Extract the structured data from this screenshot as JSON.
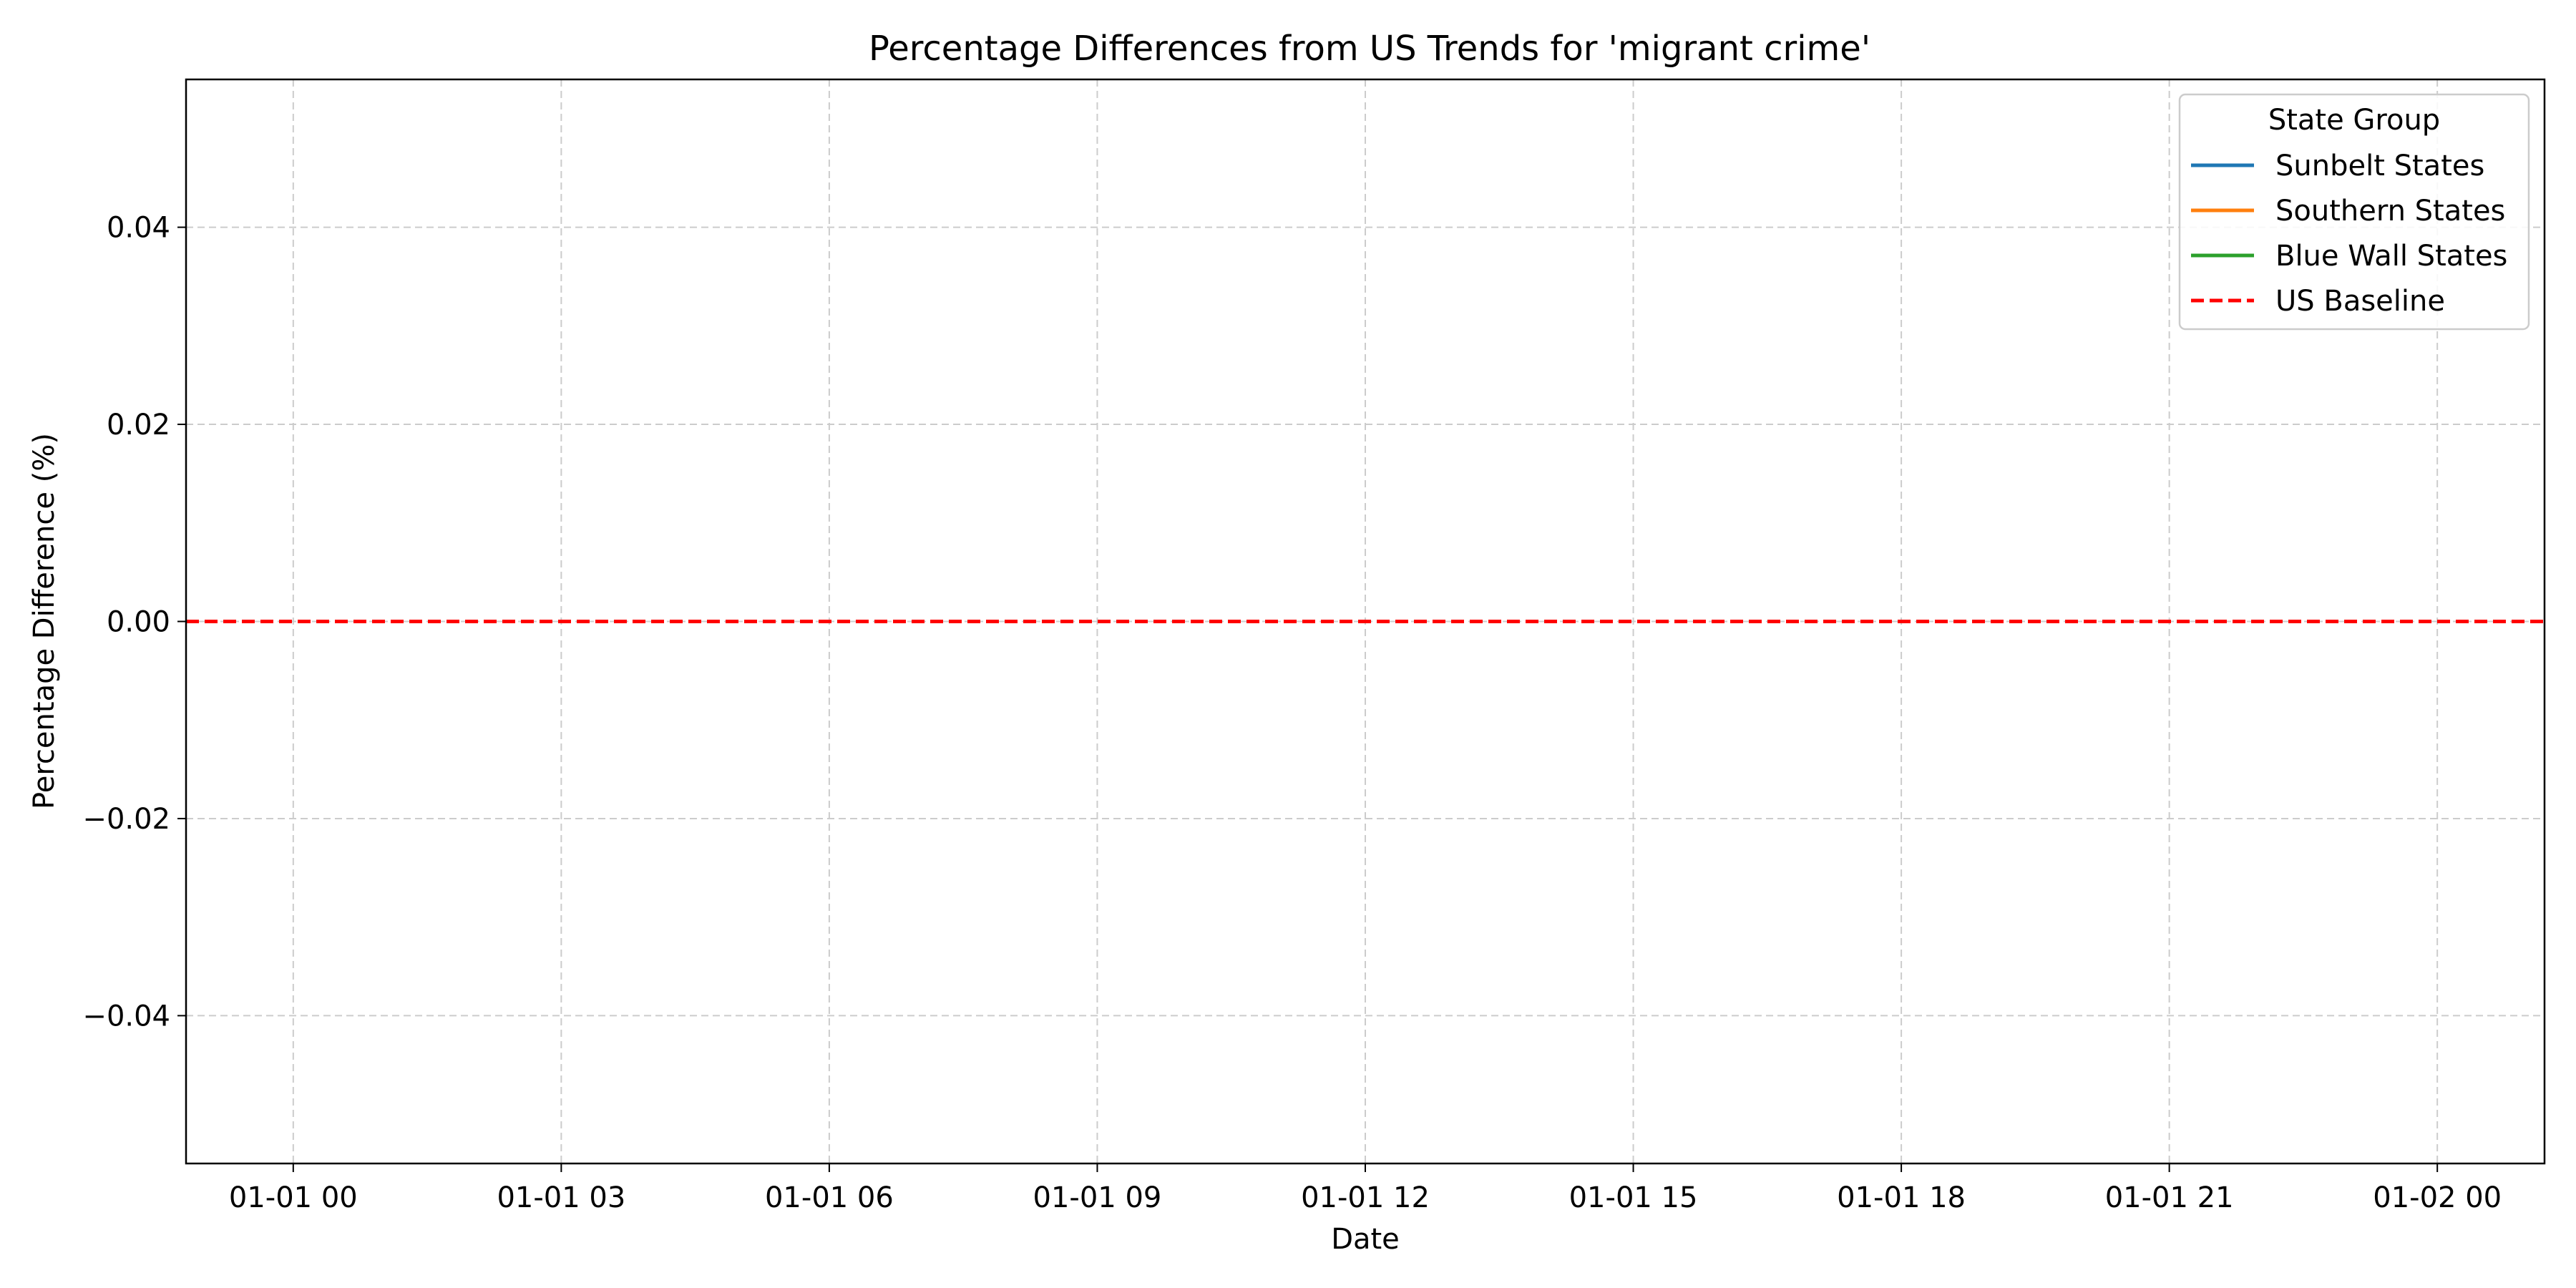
{
  "chart_data": {
    "type": "line",
    "title": "Percentage Differences from US Trends for 'migrant crime'",
    "xlabel": "Date",
    "ylabel": "Percentage Difference (%)",
    "x_ticks": [
      "01-01 00",
      "01-01 03",
      "01-01 06",
      "01-01 09",
      "01-01 12",
      "01-01 15",
      "01-01 18",
      "01-01 21",
      "01-02 00"
    ],
    "y_ticks": [
      0.04,
      0.02,
      0.0,
      -0.02,
      -0.04
    ],
    "y_tick_labels": [
      "0.04",
      "0.02",
      "0.00",
      "−0.02",
      "−0.04"
    ],
    "xlim_hours": [
      -1.2,
      25.2
    ],
    "ylim": [
      -0.055,
      0.055
    ],
    "grid": true,
    "grid_style": "dashed",
    "legend": {
      "title": "State Group",
      "placement": "top-right",
      "entries": [
        {
          "label": "Sunbelt States",
          "color": "#1f77b4",
          "style": "solid"
        },
        {
          "label": "Southern States",
          "color": "#ff7f0e",
          "style": "solid"
        },
        {
          "label": "Blue Wall States",
          "color": "#2ca02c",
          "style": "solid"
        },
        {
          "label": "US Baseline",
          "color": "#ff0000",
          "style": "dashed"
        }
      ]
    },
    "series": [
      {
        "name": "Sunbelt States",
        "color": "#1f77b4",
        "values": []
      },
      {
        "name": "Southern States",
        "color": "#ff7f0e",
        "values": []
      },
      {
        "name": "Blue Wall States",
        "color": "#2ca02c",
        "values": []
      }
    ],
    "baseline": {
      "name": "US Baseline",
      "y": 0.0,
      "color": "#ff0000",
      "style": "dashed"
    }
  }
}
